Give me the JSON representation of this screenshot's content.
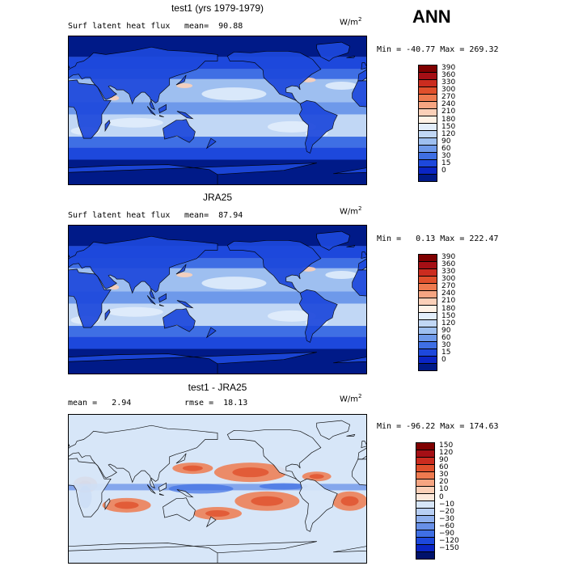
{
  "season": "ANN",
  "units_base": "W/m",
  "units_exp": "2",
  "panels": [
    {
      "title": "test1 (yrs 1979-1979)",
      "field_label": "Surf latent heat flux",
      "stat_text": "mean=  90.88",
      "minmax_text": "Min = -40.77 Max = 269.32",
      "levels": [
        "390",
        "360",
        "330",
        "300",
        "270",
        "240",
        "210",
        "180",
        "150",
        "120",
        "90",
        "60",
        "30",
        "15",
        "0"
      ],
      "colors": [
        "#7f0000",
        "#a50f15",
        "#cb2c1f",
        "#e0502c",
        "#ee7a4f",
        "#f6a582",
        "#fbd0b8",
        "#fff2e6",
        "#e3eefb",
        "#c1d7f5",
        "#9ebff0",
        "#6e99ea",
        "#3f6fe4",
        "#1d48dc",
        "#0a25c4",
        "#001a88"
      ],
      "map_style": "flux"
    },
    {
      "title": "JRA25",
      "field_label": "Surf latent heat flux",
      "stat_text": "mean=  87.94",
      "minmax_text": "Min =   0.13 Max = 222.47",
      "levels": [
        "390",
        "360",
        "330",
        "300",
        "270",
        "240",
        "210",
        "180",
        "150",
        "120",
        "90",
        "60",
        "30",
        "15",
        "0"
      ],
      "colors": [
        "#7f0000",
        "#a50f15",
        "#cb2c1f",
        "#e0502c",
        "#ee7a4f",
        "#f6a582",
        "#fbd0b8",
        "#fff2e6",
        "#e3eefb",
        "#c1d7f5",
        "#9ebff0",
        "#6e99ea",
        "#3f6fe4",
        "#1d48dc",
        "#0a25c4",
        "#001a88"
      ],
      "map_style": "flux"
    },
    {
      "title": "test1 - JRA25",
      "field_label": "mean =   2.94",
      "stat_text": "rmse =  18.13",
      "minmax_text": "Min = -96.22 Max = 174.63",
      "levels": [
        "150",
        "120",
        "90",
        "60",
        "30",
        "20",
        "10",
        "0",
        "−10",
        "−20",
        "−30",
        "−60",
        "−90",
        "−120",
        "−150"
      ],
      "colors": [
        "#7f0000",
        "#a50f15",
        "#cb2c1f",
        "#e0502c",
        "#ee7a4f",
        "#f6a582",
        "#fbd0b8",
        "#fde9dc",
        "#d7e6f8",
        "#b8cff4",
        "#8fb0ee",
        "#6890e8",
        "#3f6fe4",
        "#1d48dc",
        "#0a25c4",
        "#00126b"
      ],
      "map_style": "diff"
    }
  ]
}
